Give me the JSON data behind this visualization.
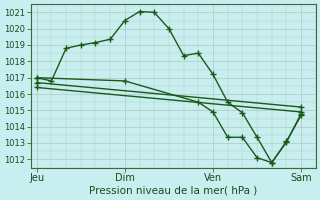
{
  "bg_color": "#c8eef0",
  "grid_color": "#c8d8d0",
  "line_color": "#1a5a1a",
  "marker": "+",
  "markersize": 4,
  "linewidth": 1.0,
  "xlabel_text": "Pression niveau de la mer( hPa )",
  "xtick_labels": [
    "Jeu",
    "Dim",
    "Ven",
    "Sam"
  ],
  "xtick_positions": [
    0,
    30,
    60,
    90
  ],
  "ylim": [
    1011.5,
    1021.5
  ],
  "yticks": [
    1012,
    1013,
    1014,
    1015,
    1016,
    1017,
    1018,
    1019,
    1020,
    1021
  ],
  "xlim": [
    -2,
    95
  ],
  "line1_x": [
    0,
    5,
    10,
    15,
    20,
    25,
    30,
    35,
    40,
    45,
    50,
    55,
    60,
    65,
    70,
    75,
    80,
    85,
    90
  ],
  "line1_y": [
    1017.0,
    1016.8,
    1018.8,
    1019.0,
    1019.15,
    1019.35,
    1020.5,
    1021.05,
    1021.0,
    1020.0,
    1018.35,
    1018.5,
    1017.2,
    1015.5,
    1014.85,
    1013.35,
    1011.8,
    1013.05,
    1014.8
  ],
  "line2_x": [
    0,
    30,
    55,
    60,
    65,
    70,
    75,
    80,
    85,
    90
  ],
  "line2_y": [
    1017.0,
    1016.8,
    1015.5,
    1014.9,
    1013.35,
    1013.35,
    1012.1,
    1011.8,
    1013.1,
    1014.7
  ],
  "line3_x": [
    0,
    90
  ],
  "line3_y": [
    1016.7,
    1015.2
  ],
  "line4_x": [
    0,
    90
  ],
  "line4_y": [
    1016.4,
    1014.9
  ]
}
